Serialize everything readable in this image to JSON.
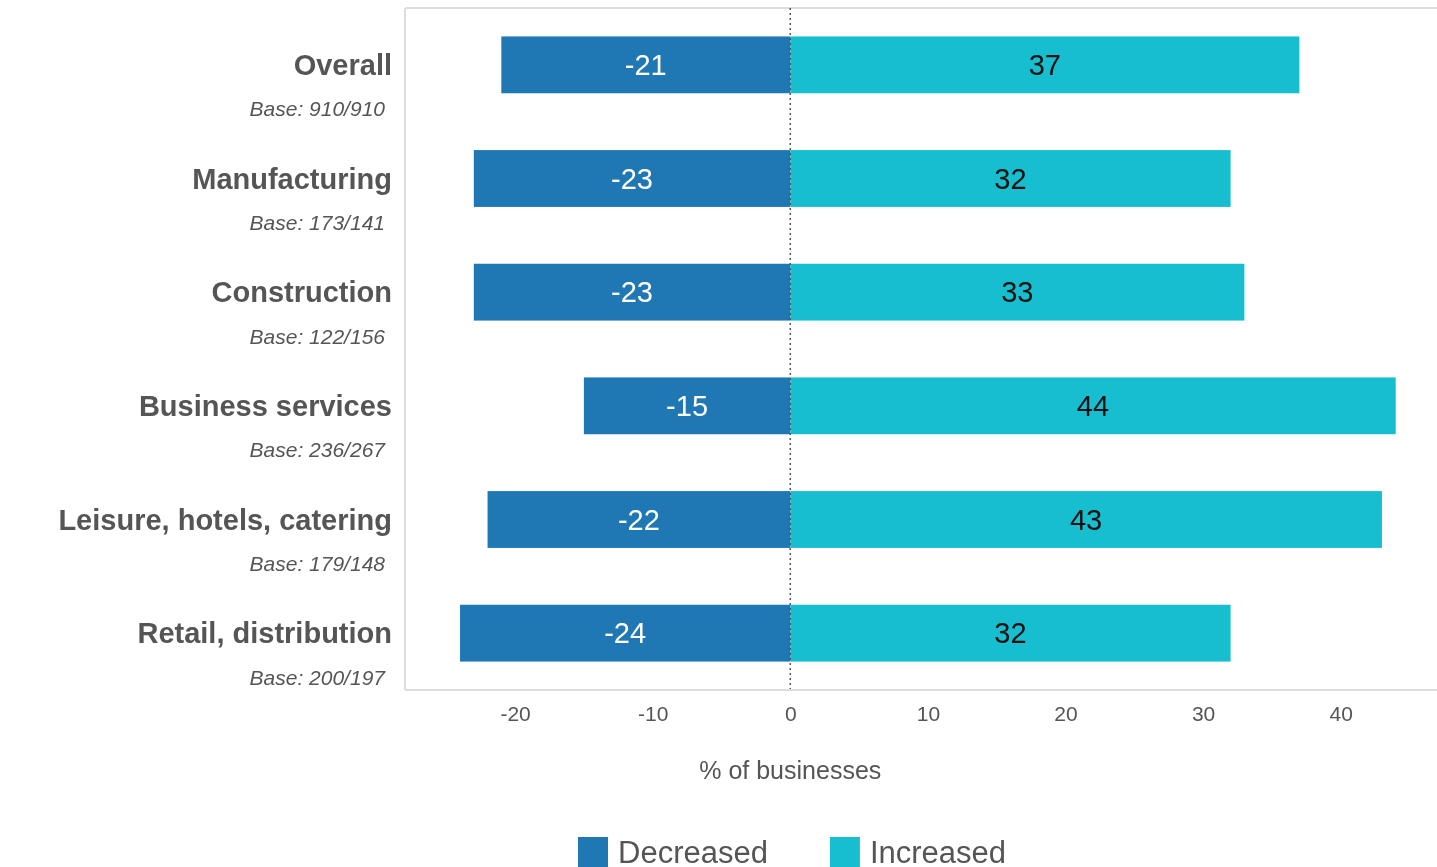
{
  "chart_data": {
    "type": "bar",
    "orientation": "horizontal",
    "stacked": true,
    "categories": [
      "Overall",
      "Manufacturing",
      "Construction",
      "Business services",
      "Leisure, hotels, catering",
      "Retail, distribution"
    ],
    "series": [
      {
        "name": "Decreased",
        "color": "#1f77b4",
        "values": [
          -21,
          -23,
          -23,
          -15,
          -22,
          -24
        ]
      },
      {
        "name": "Increased",
        "color": "#17becf",
        "values": [
          37,
          32,
          33,
          44,
          43,
          32
        ]
      }
    ],
    "xlabel": "% of businesses",
    "xlim": [
      -28,
      47
    ],
    "xticks": [
      -20,
      -10,
      0,
      10,
      20,
      30,
      40
    ],
    "ref_lines": [
      {
        "axis": "x",
        "value": 0,
        "color": "#555555",
        "line_style": "dotted"
      }
    ],
    "annotations": [
      "Base: 910/910",
      "Base: 173/141",
      "Base: 122/156",
      "Base: 236/267",
      "Base: 179/148",
      "Base: 200/197"
    ],
    "data_labels": true,
    "legend": "bottom",
    "grid": false
  }
}
